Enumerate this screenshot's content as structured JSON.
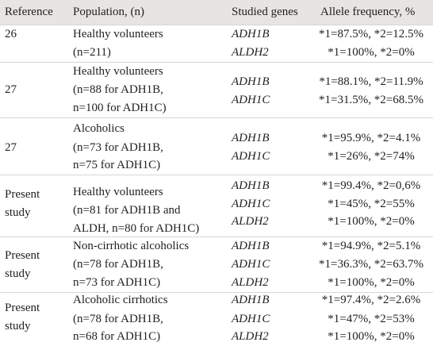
{
  "table": {
    "header": [
      "Reference",
      "Population, (n)",
      "Studied genes",
      "Allele frequency, %"
    ],
    "rows": [
      {
        "reference": [
          "26"
        ],
        "population": [
          "Healthy volunteers",
          "(n=211)"
        ],
        "genes": [
          "ADH1B",
          "ALDH2"
        ],
        "frequencies": [
          "*1=87.5%, *2=12.5%",
          "*1=100%, *2=0%"
        ]
      },
      {
        "reference": [
          "27"
        ],
        "population": [
          "Healthy volunteers",
          "(n=88 for ADH1B,",
          "n=100 for ADH1C)"
        ],
        "genes": [
          "ADH1B",
          "ADH1C"
        ],
        "frequencies": [
          "*1=88.1%, *2=11.9%",
          "*1=31.5%, *2=68.5%"
        ]
      },
      {
        "reference": [
          "27"
        ],
        "population": [
          "Alcoholics",
          "(n=73 for ADH1B,",
          "n=75 for ADH1C)"
        ],
        "genes": [
          "ADH1B",
          "ADH1C"
        ],
        "frequencies": [
          "*1=95.9%, *2=4.1%",
          "*1=26%, *2=74%"
        ]
      },
      {
        "reference": [
          "Present",
          "study"
        ],
        "population": [
          "Healthy volunteers",
          "(n=81 for ADH1B and",
          "ALDH, n=80 for ADH1C)"
        ],
        "genes": [
          "ADH1B",
          "ADH1C",
          "ALDH2"
        ],
        "frequencies": [
          "*1=99.4%, *2=0,6%",
          "*1=45%, *2=55%",
          "*1=100%, *2=0%"
        ]
      },
      {
        "reference": [
          "Present",
          "study"
        ],
        "population": [
          "Non-cirrhotic alcoholics",
          "(n=78 for ADH1B,",
          "n=73 for ADH1C)"
        ],
        "genes": [
          "ADH1B",
          "ADH1C",
          "ALDH2"
        ],
        "frequencies": [
          "*1=94.9%, *2=5.1%",
          "*1=36.3%, *2=63.7%",
          "*1=100%, *2=0%"
        ]
      },
      {
        "reference": [
          "Present",
          "study"
        ],
        "population": [
          "Alcoholic cirrhotics",
          "(n=78 for ADH1B,",
          "n=68 for ADH1C)"
        ],
        "genes": [
          "ADH1B",
          "ADH1C",
          "ALDH2"
        ],
        "frequencies": [
          "*1=97.4%, *2=2.6%",
          "*1=47%, *2=53%",
          "*1=100%, *2=0%"
        ]
      }
    ]
  }
}
